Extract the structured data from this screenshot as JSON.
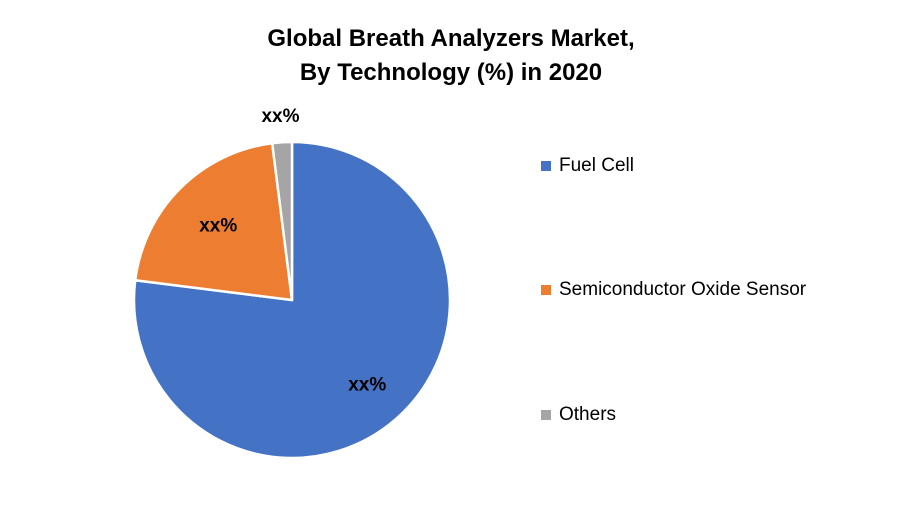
{
  "chart_data": {
    "type": "pie",
    "title_lines": [
      "Global Breath Analyzers Market,",
      "By Technology (%) in 2020"
    ],
    "slices": [
      {
        "name": "Fuel Cell",
        "value": 77,
        "label": "xx%",
        "color": "#4472C4"
      },
      {
        "name": "Semiconductor Oxide Sensor",
        "value": 21,
        "label": "xx%",
        "color": "#ED7D31"
      },
      {
        "name": "Others",
        "value": 2,
        "label": "xx%",
        "color": "#A5A5A5"
      }
    ],
    "legend_position": "right",
    "start_angle_deg": 0,
    "direction": "clockwise"
  }
}
